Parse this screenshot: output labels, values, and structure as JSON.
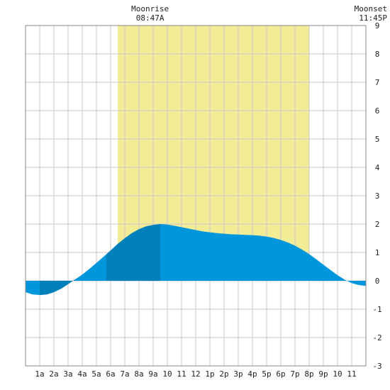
{
  "chart_data": {
    "type": "area",
    "x_unit": "hour",
    "xlim": [
      0,
      24
    ],
    "ylim": [
      -3,
      9
    ],
    "grid": true,
    "x_tick_labels": [
      {
        "x": 1,
        "label": "1a"
      },
      {
        "x": 2,
        "label": "2a"
      },
      {
        "x": 3,
        "label": "3a"
      },
      {
        "x": 4,
        "label": "4a"
      },
      {
        "x": 5,
        "label": "5a"
      },
      {
        "x": 6,
        "label": "6a"
      },
      {
        "x": 7,
        "label": "7a"
      },
      {
        "x": 8,
        "label": "8a"
      },
      {
        "x": 9,
        "label": "9a"
      },
      {
        "x": 10,
        "label": "10"
      },
      {
        "x": 11,
        "label": "11"
      },
      {
        "x": 12,
        "label": "12"
      },
      {
        "x": 13,
        "label": "1p"
      },
      {
        "x": 14,
        "label": "2p"
      },
      {
        "x": 15,
        "label": "3p"
      },
      {
        "x": 16,
        "label": "4p"
      },
      {
        "x": 17,
        "label": "5p"
      },
      {
        "x": 18,
        "label": "6p"
      },
      {
        "x": 19,
        "label": "7p"
      },
      {
        "x": 20,
        "label": "8p"
      },
      {
        "x": 21,
        "label": "9p"
      },
      {
        "x": 22,
        "label": "10"
      },
      {
        "x": 23,
        "label": "11"
      }
    ],
    "y_tick_labels": [
      "-3",
      "-2",
      "-1",
      "0",
      "1",
      "2",
      "3",
      "4",
      "5",
      "6",
      "7",
      "8",
      "9"
    ],
    "y_ticks": [
      -3,
      -2,
      -1,
      0,
      1,
      2,
      3,
      4,
      5,
      6,
      7,
      8,
      9
    ],
    "series": [
      {
        "x": [
          0,
          0.5,
          1,
          1.5,
          2,
          2.5,
          3,
          3.5,
          4,
          4.5,
          5,
          5.5,
          6,
          6.5,
          7,
          7.5,
          8,
          8.5,
          9,
          9.5,
          10,
          10.5,
          11,
          11.5,
          12,
          12.5,
          13,
          13.5,
          14,
          14.5,
          15,
          15.5,
          16,
          16.5,
          17,
          17.5,
          18,
          18.5,
          19,
          19.5,
          20,
          20.5,
          21,
          21.5,
          22,
          22.5,
          23,
          23.5,
          24
        ],
        "y": [
          -0.4,
          -0.48,
          -0.5,
          -0.48,
          -0.4,
          -0.28,
          -0.12,
          0.05,
          0.22,
          0.42,
          0.63,
          0.85,
          1.07,
          1.3,
          1.5,
          1.68,
          1.82,
          1.92,
          1.97,
          2.0,
          1.98,
          1.94,
          1.89,
          1.84,
          1.79,
          1.74,
          1.71,
          1.68,
          1.66,
          1.64,
          1.63,
          1.62,
          1.61,
          1.59,
          1.56,
          1.51,
          1.44,
          1.35,
          1.24,
          1.1,
          0.94,
          0.76,
          0.57,
          0.38,
          0.2,
          0.04,
          -0.08,
          -0.15,
          -0.18
        ]
      }
    ],
    "darker_fill_intervals": [
      [
        1,
        3.5
      ],
      [
        5.7,
        9.5
      ]
    ],
    "colors": {
      "background": "#ffffff",
      "grid": "#c8c8c8",
      "daylight": "#f2ec96",
      "tide_light": "#0096dc",
      "tide_dark": "#0080ba"
    }
  },
  "moonrise": {
    "label": "Moonrise",
    "time": "08:47A",
    "hour": 8.78
  },
  "moonset": {
    "label": "Moonset",
    "time": "11:45P",
    "hour": 23.75
  },
  "daylight_band": {
    "start": 6.5,
    "end": 20
  }
}
